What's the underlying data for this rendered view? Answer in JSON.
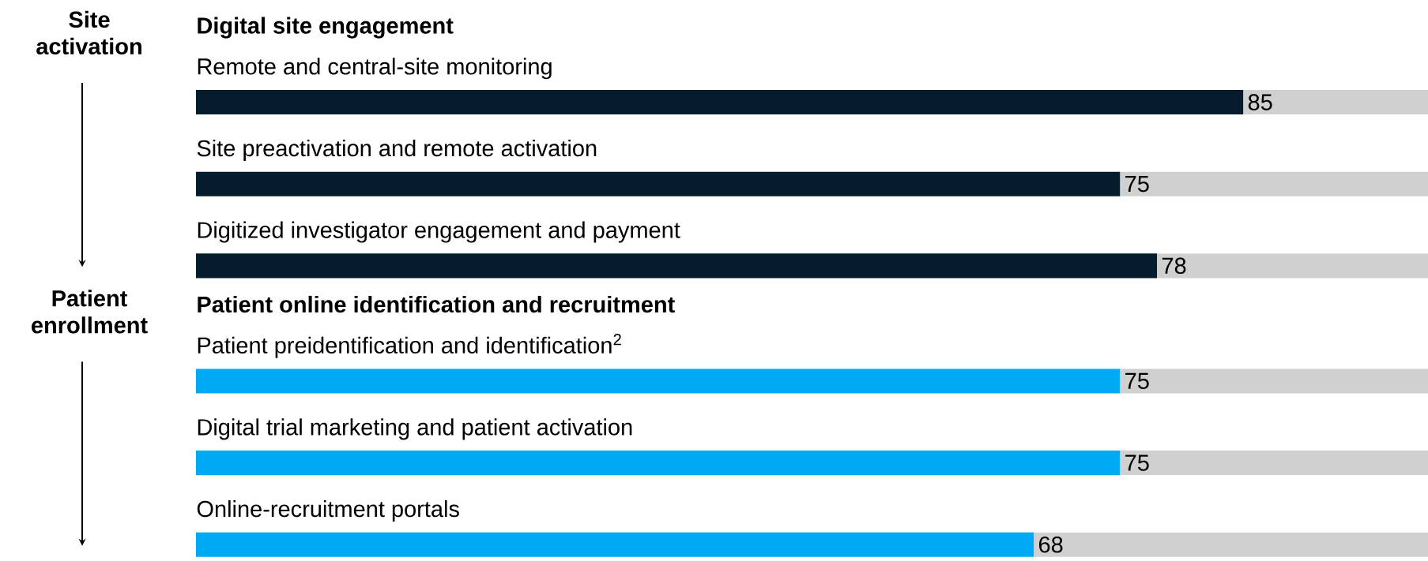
{
  "chart_data": {
    "type": "bar",
    "orientation": "horizontal",
    "stacked": true,
    "categories": [
      "Remote and central-site monitoring",
      "Site preactivation and remote activation",
      "Digitized investigator engagement and payment",
      "Patient preidentification and identification$^{2}$",
      "Digital trial marketing and patient activation",
      "Online-recruitment portals"
    ],
    "series": [
      {
        "colors": [
          "#051c2c",
          "#051c2c",
          "#051c2c",
          "#00a9f4",
          "#00a9f4",
          "#00a9f4"
        ],
        "values": [
          85,
          75,
          78,
          75,
          75,
          68
        ],
        "value_labels": [
          "85",
          "75",
          "78",
          "75",
          "75",
          "68"
        ]
      },
      {
        "color": "#d0d0d0",
        "values": [
          15,
          25,
          22,
          25,
          25,
          32
        ]
      }
    ],
    "annotations": [
      "Digital site engagement",
      "Patient online identification and recruitment",
      "Site activation",
      "Patient enrollment"
    ]
  }
}
